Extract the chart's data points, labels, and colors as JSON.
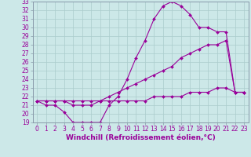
{
  "xlabel": "Windchill (Refroidissement éolien,°C)",
  "background_color": "#cce8e8",
  "line_color": "#990099",
  "grid_color": "#aacccc",
  "spine_color": "#8899aa",
  "xlim": [
    -0.5,
    23.5
  ],
  "ylim": [
    19,
    33
  ],
  "xticks": [
    0,
    1,
    2,
    3,
    4,
    5,
    6,
    7,
    8,
    9,
    10,
    11,
    12,
    13,
    14,
    15,
    16,
    17,
    18,
    19,
    20,
    21,
    22,
    23
  ],
  "yticks": [
    19,
    20,
    21,
    22,
    23,
    24,
    25,
    26,
    27,
    28,
    29,
    30,
    31,
    32,
    33
  ],
  "line1_x": [
    0,
    1,
    2,
    3,
    4,
    5,
    6,
    7,
    8,
    9,
    10,
    11,
    12,
    13,
    14,
    15,
    16,
    17,
    18,
    19,
    20,
    21,
    22,
    23
  ],
  "line1_y": [
    21.5,
    21.0,
    21.0,
    20.2,
    19.0,
    19.0,
    19.0,
    19.0,
    21.0,
    22.0,
    24.0,
    26.5,
    28.5,
    31.0,
    32.5,
    33.0,
    32.5,
    31.5,
    30.0,
    30.0,
    29.5,
    29.5,
    22.5,
    22.5
  ],
  "line2_x": [
    0,
    1,
    2,
    3,
    4,
    5,
    6,
    7,
    8,
    9,
    10,
    11,
    12,
    13,
    14,
    15,
    16,
    17,
    18,
    19,
    20,
    21,
    22,
    23
  ],
  "line2_y": [
    21.5,
    21.5,
    21.5,
    21.5,
    21.0,
    21.0,
    21.0,
    21.5,
    22.0,
    22.5,
    23.0,
    23.5,
    24.0,
    24.5,
    25.0,
    25.5,
    26.5,
    27.0,
    27.5,
    28.0,
    28.0,
    28.5,
    22.5,
    22.5
  ],
  "line3_x": [
    0,
    1,
    2,
    3,
    4,
    5,
    6,
    7,
    8,
    9,
    10,
    11,
    12,
    13,
    14,
    15,
    16,
    17,
    18,
    19,
    20,
    21,
    22,
    23
  ],
  "line3_y": [
    21.5,
    21.5,
    21.5,
    21.5,
    21.5,
    21.5,
    21.5,
    21.5,
    21.5,
    21.5,
    21.5,
    21.5,
    21.5,
    22.0,
    22.0,
    22.0,
    22.0,
    22.5,
    22.5,
    22.5,
    23.0,
    23.0,
    22.5,
    22.5
  ],
  "marker": "D",
  "marker_size": 2.0,
  "fontsize_label": 6.5,
  "fontsize_tick": 5.5
}
